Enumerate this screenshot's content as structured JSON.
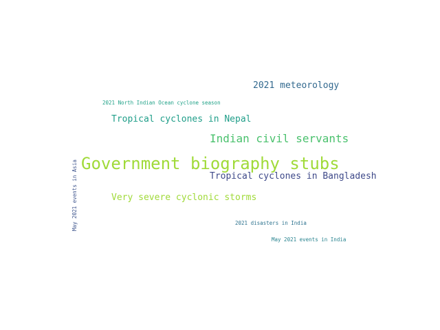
{
  "words": [
    {
      "text": "Government biography stubs",
      "color": "#a0da39"
    },
    {
      "text": "Indian civil servants",
      "color": "#4ac16d"
    },
    {
      "text": "Tropical cyclones in Bangladesh",
      "color": "#3e4989"
    },
    {
      "text": "Very severe cyclonic storms",
      "color": "#a0da39"
    },
    {
      "text": "Tropical cyclones in Nepal",
      "color": "#1f9e89"
    },
    {
      "text": "2021 meteorology",
      "color": "#31688e"
    },
    {
      "text": "2021 North Indian Ocean cyclone season",
      "color": "#1fa187"
    },
    {
      "text": "2021 disasters in India",
      "color": "#2c728e"
    },
    {
      "text": "May 2021 events in India",
      "color": "#26828e"
    },
    {
      "text": "May 2021 events in Asia",
      "color": "#3b528b"
    }
  ]
}
